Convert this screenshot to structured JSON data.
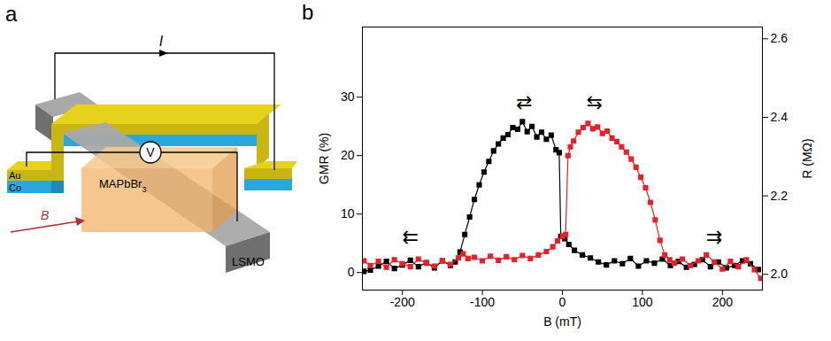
{
  "diagram": {
    "panel_label": "a",
    "layers": {
      "top": "Au",
      "bottom": "Co"
    },
    "spacer": {
      "text": "MAPbBr",
      "subscript": "3"
    },
    "bottom_electrode": "LSMO",
    "current": "I",
    "voltmeter": "V",
    "field": "B"
  },
  "chart_data": {
    "type": "line",
    "panel_label": "b",
    "x_label": "B (mT)",
    "y_label": "GMR (%)",
    "y2_label": "R (MΩ)",
    "xlim": [
      -250,
      250
    ],
    "xticks": [
      -200,
      -100,
      0,
      100,
      200
    ],
    "ylim": [
      -3,
      42
    ],
    "yticks": [
      0,
      10,
      20,
      30
    ],
    "y2lim": [
      1.96,
      2.63
    ],
    "y2ticks": [
      {
        "value": 2.0,
        "label": "2.0"
      },
      {
        "value": 2.2,
        "label": "2.2"
      },
      {
        "value": 2.4,
        "label": "2.4"
      },
      {
        "value": 2.6,
        "label": "2.6"
      }
    ],
    "grid": false,
    "annotations": [
      {
        "x": -190,
        "y": 6,
        "text": "⇇"
      },
      {
        "x": -48,
        "y": 29,
        "text": "⇄"
      },
      {
        "x": 40,
        "y": 29,
        "text": "⇆"
      },
      {
        "x": 190,
        "y": 6,
        "text": "⇉"
      }
    ],
    "series": [
      {
        "color": "#000000",
        "marker": "square",
        "line_style": "solid",
        "x": [
          245,
          235,
          225,
          215,
          205,
          195,
          185,
          175,
          165,
          155,
          145,
          135,
          125,
          115,
          105,
          95,
          85,
          75,
          65,
          55,
          45,
          35,
          25,
          15,
          8,
          3,
          -2,
          -4,
          -8,
          -14,
          -20,
          -26,
          -32,
          -38,
          -44,
          -50,
          -56,
          -62,
          -68,
          -74,
          -80,
          -86,
          -92,
          -98,
          -104,
          -110,
          -116,
          -122,
          -128,
          -134,
          -140,
          -150,
          -160,
          -170,
          -180,
          -190,
          -200,
          -210,
          -220,
          -230,
          -240,
          -248
        ],
        "values": [
          0.5,
          1.5,
          2.0,
          1.2,
          0.8,
          1.8,
          1.0,
          2.2,
          1.4,
          0.9,
          1.9,
          1.2,
          2.3,
          1.6,
          2.0,
          1.1,
          2.4,
          1.5,
          2.0,
          1.3,
          1.8,
          2.5,
          3.0,
          3.8,
          4.8,
          5.8,
          6.2,
          20.5,
          21.0,
          23.5,
          22.8,
          24.0,
          23.2,
          25.0,
          24.1,
          25.8,
          24.5,
          24.8,
          23.6,
          23.0,
          22.0,
          20.8,
          19.0,
          17.2,
          15.0,
          12.5,
          9.5,
          6.5,
          3.5,
          1.8,
          1.2,
          2.0,
          0.8,
          1.7,
          1.0,
          2.1,
          1.3,
          0.7,
          1.9,
          1.1,
          0.4,
          0.2
        ]
      },
      {
        "color": "#e8202a",
        "marker": "square",
        "line_style": "solid",
        "x": [
          -248,
          -240,
          -230,
          -220,
          -210,
          -200,
          -190,
          -180,
          -170,
          -160,
          -150,
          -140,
          -130,
          -124,
          -118,
          -110,
          -100,
          -90,
          -80,
          -70,
          -60,
          -50,
          -40,
          -30,
          -20,
          -12,
          -6,
          0,
          4,
          7,
          10,
          14,
          20,
          26,
          32,
          38,
          44,
          50,
          56,
          62,
          68,
          74,
          80,
          86,
          92,
          98,
          104,
          110,
          116,
          122,
          128,
          134,
          140,
          150,
          160,
          170,
          180,
          190,
          200,
          210,
          220,
          230,
          240,
          248
        ],
        "values": [
          2.0,
          1.2,
          1.9,
          0.9,
          2.2,
          1.5,
          1.0,
          2.3,
          1.6,
          1.1,
          2.0,
          1.4,
          2.5,
          3.2,
          2.4,
          2.6,
          2.0,
          2.8,
          2.1,
          2.7,
          2.2,
          2.9,
          2.4,
          3.0,
          3.6,
          4.4,
          5.4,
          6.2,
          6.5,
          20.0,
          21.5,
          22.5,
          24.0,
          24.8,
          25.5,
          24.6,
          24.9,
          23.8,
          24.2,
          23.0,
          22.4,
          21.5,
          20.6,
          19.4,
          18.0,
          16.3,
          14.5,
          12.0,
          9.0,
          5.5,
          3.0,
          2.2,
          1.6,
          2.3,
          1.2,
          2.0,
          3.0,
          1.8,
          0.6,
          1.9,
          1.0,
          2.2,
          0.5,
          -1.0
        ]
      }
    ]
  }
}
